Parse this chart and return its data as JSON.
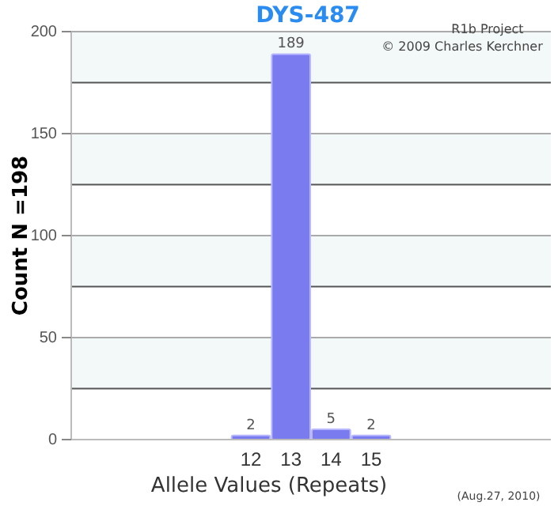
{
  "chart_data": {
    "type": "bar",
    "title": "DYS-487",
    "xlabel": "Allele Values (Repeats)",
    "ylabel": "Count N =198",
    "categories": [
      null,
      null,
      null,
      null,
      "12",
      "13",
      "14",
      "15",
      null,
      null,
      null,
      null
    ],
    "values": [
      null,
      null,
      null,
      null,
      2,
      189,
      5,
      2,
      null,
      null,
      null,
      null
    ],
    "color": "#7b7bf0",
    "data_labels": true,
    "ylim": [
      0,
      200
    ],
    "yticks": [
      0,
      {
        "value": 25,
        "label": null
      },
      50,
      {
        "value": 75,
        "label": null
      },
      100,
      {
        "value": 125,
        "label": null
      },
      150,
      {
        "value": 175,
        "label": null
      },
      200
    ],
    "grid": "y",
    "annotations": [
      "R1b Project",
      "© 2009 Charles Kerchner",
      "(Aug.27, 2010)"
    ]
  }
}
